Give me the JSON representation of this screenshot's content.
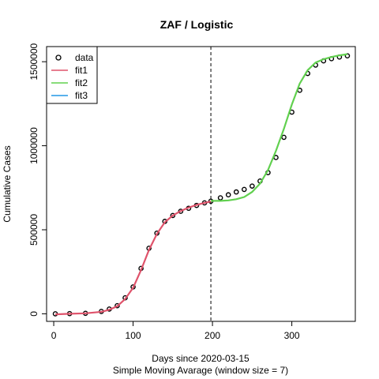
{
  "chart_data": {
    "type": "line",
    "title": "ZAF / Logistic",
    "xlabel": "Days since 2020-03-15",
    "xlabel_sub": "Simple Moving Avarage (window size = 7)",
    "ylabel": "Cumulative Cases",
    "xlim": [
      -9,
      380
    ],
    "ylim": [
      -45000,
      1590000
    ],
    "x_ticks": [
      0,
      100,
      200,
      300
    ],
    "y_ticks": [
      0,
      500000,
      1000000,
      1500000
    ],
    "x_tick_labels": [
      "0",
      "100",
      "200",
      "300"
    ],
    "y_tick_labels": [
      "0",
      "500000",
      "1000000",
      "1500000"
    ],
    "vline_x": 198,
    "legend_position": "top-left",
    "legend": [
      {
        "label": "data",
        "kind": "point",
        "color": "#000000"
      },
      {
        "label": "fit1",
        "kind": "line",
        "color": "#DF536B"
      },
      {
        "label": "fit2",
        "kind": "line",
        "color": "#61D04F"
      },
      {
        "label": "fit3",
        "kind": "line",
        "color": "#2297E6"
      }
    ],
    "data_points": {
      "x": [
        2,
        20,
        40,
        60,
        70,
        80,
        90,
        100,
        110,
        120,
        130,
        140,
        150,
        160,
        170,
        180,
        190,
        198,
        210,
        220,
        230,
        240,
        250,
        260,
        270,
        280,
        290,
        300,
        310,
        320,
        330,
        340,
        350,
        360,
        370
      ],
      "y": [
        0,
        1000,
        3000,
        14000,
        28000,
        48000,
        95000,
        160000,
        270000,
        390000,
        480000,
        550000,
        585000,
        610000,
        628000,
        645000,
        660000,
        670000,
        690000,
        708000,
        725000,
        740000,
        760000,
        790000,
        840000,
        930000,
        1050000,
        1200000,
        1330000,
        1430000,
        1480000,
        1505000,
        1518000,
        1528000,
        1535000
      ]
    },
    "series": [
      {
        "name": "fit1",
        "color": "#DF536B",
        "x": [
          2,
          20,
          40,
          60,
          70,
          80,
          90,
          100,
          110,
          120,
          130,
          140,
          150,
          160,
          170,
          180,
          190,
          198
        ],
        "y": [
          -3000,
          0,
          3000,
          12000,
          24000,
          45000,
          88000,
          155000,
          260000,
          380000,
          475000,
          545000,
          585000,
          612000,
          632000,
          648000,
          660000,
          668000
        ]
      },
      {
        "name": "fit2",
        "color": "#61D04F",
        "x": [
          198,
          210,
          220,
          230,
          240,
          250,
          260,
          270,
          280,
          290,
          300,
          310,
          320,
          330,
          340,
          350,
          360,
          370
        ],
        "y": [
          672000,
          672000,
          675000,
          682000,
          695000,
          725000,
          775000,
          855000,
          970000,
          1100000,
          1245000,
          1370000,
          1450000,
          1495000,
          1515000,
          1528000,
          1538000,
          1545000
        ]
      },
      {
        "name": "fit3",
        "color": "#2297E6",
        "x": [],
        "y": []
      }
    ]
  }
}
